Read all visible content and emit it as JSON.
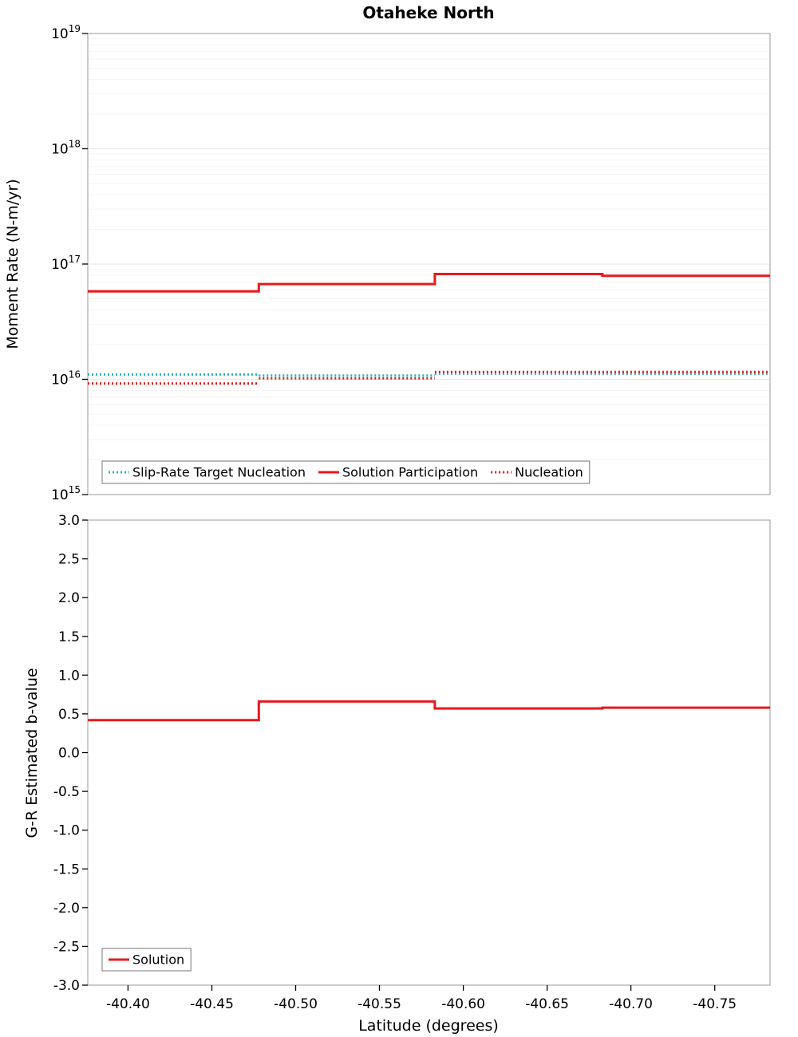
{
  "title": "Otaheke North",
  "colors": {
    "red": "#e8191c",
    "cyan": "#29b6c5",
    "grid_major": "#e6e6e6",
    "grid_minor": "#f4f4f4",
    "frame": "#9a9a9a",
    "tick": "#000000",
    "legend_border": "#777777"
  },
  "chart_data": [
    {
      "type": "line",
      "title": "Otaheke North",
      "ylabel": "Moment Rate (N-m/yr)",
      "yscale": "log",
      "ylim": [
        1000000000000000.0,
        1e+19
      ],
      "xlim": [
        -40.376,
        -40.783
      ],
      "grid": true,
      "legend_entries": [
        "Slip-Rate Target Nucleation",
        "Solution Participation",
        "Nucleation"
      ],
      "y_ticks": [
        {
          "value": 1e+19,
          "exp": "19"
        },
        {
          "value": 1e+18,
          "exp": "18"
        },
        {
          "value": 1e+17,
          "exp": "17"
        },
        {
          "value": 1e+16,
          "exp": "16"
        },
        {
          "value": 1000000000000000.0,
          "exp": "15"
        }
      ],
      "series": [
        {
          "name": "Slip-Rate Target Nucleation",
          "color": "#29b6c5",
          "style": "dotted",
          "segments": [
            {
              "x": [
                -40.376,
                -40.478
              ],
              "y": 1.1e+16
            },
            {
              "x": [
                -40.478,
                -40.583
              ],
              "y": 1.08e+16
            },
            {
              "x": [
                -40.583,
                -40.783
              ],
              "y": 1.12e+16
            }
          ]
        },
        {
          "name": "Solution Participation",
          "color": "#e8191c",
          "style": "solid",
          "segments": [
            {
              "x": [
                -40.376,
                -40.478
              ],
              "y": 5.8e+16
            },
            {
              "x": [
                -40.478,
                -40.583
              ],
              "y": 6.7e+16
            },
            {
              "x": [
                -40.583,
                -40.683
              ],
              "y": 8.2e+16
            },
            {
              "x": [
                -40.683,
                -40.783
              ],
              "y": 7.9e+16
            }
          ]
        },
        {
          "name": "Nucleation",
          "color": "#e8191c",
          "style": "dotted",
          "segments": [
            {
              "x": [
                -40.376,
                -40.478
              ],
              "y": 9200000000000000.0
            },
            {
              "x": [
                -40.478,
                -40.583
              ],
              "y": 1.02e+16
            },
            {
              "x": [
                -40.583,
                -40.783
              ],
              "y": 1.16e+16
            }
          ]
        }
      ]
    },
    {
      "type": "line",
      "ylabel": "G-R Estimated b-value",
      "xlabel": "Latitude (degrees)",
      "yscale": "linear",
      "ylim": [
        -3.0,
        3.0
      ],
      "xlim": [
        -40.376,
        -40.783
      ],
      "grid": false,
      "legend_entries": [
        "Solution"
      ],
      "y_ticks": [
        {
          "value": 3.0,
          "label": "3.0"
        },
        {
          "value": 2.5,
          "label": "2.5"
        },
        {
          "value": 2.0,
          "label": "2.0"
        },
        {
          "value": 1.5,
          "label": "1.5"
        },
        {
          "value": 1.0,
          "label": "1.0"
        },
        {
          "value": 0.5,
          "label": "0.5"
        },
        {
          "value": 0.0,
          "label": "0.0"
        },
        {
          "value": -0.5,
          "label": "-0.5"
        },
        {
          "value": -1.0,
          "label": "-1.0"
        },
        {
          "value": -1.5,
          "label": "-1.5"
        },
        {
          "value": -2.0,
          "label": "-2.0"
        },
        {
          "value": -2.5,
          "label": "-2.5"
        },
        {
          "value": -3.0,
          "label": "-3.0"
        }
      ],
      "x_ticks": [
        {
          "value": -40.4,
          "label": "-40.40"
        },
        {
          "value": -40.45,
          "label": "-40.45"
        },
        {
          "value": -40.5,
          "label": "-40.50"
        },
        {
          "value": -40.55,
          "label": "-40.55"
        },
        {
          "value": -40.6,
          "label": "-40.60"
        },
        {
          "value": -40.65,
          "label": "-40.65"
        },
        {
          "value": -40.7,
          "label": "-40.70"
        },
        {
          "value": -40.75,
          "label": "-40.75"
        }
      ],
      "series": [
        {
          "name": "Solution",
          "color": "#e8191c",
          "style": "solid",
          "segments": [
            {
              "x": [
                -40.376,
                -40.478
              ],
              "y": 0.42
            },
            {
              "x": [
                -40.478,
                -40.583
              ],
              "y": 0.66
            },
            {
              "x": [
                -40.583,
                -40.683
              ],
              "y": 0.57
            },
            {
              "x": [
                -40.683,
                -40.783
              ],
              "y": 0.58
            }
          ]
        }
      ]
    }
  ]
}
